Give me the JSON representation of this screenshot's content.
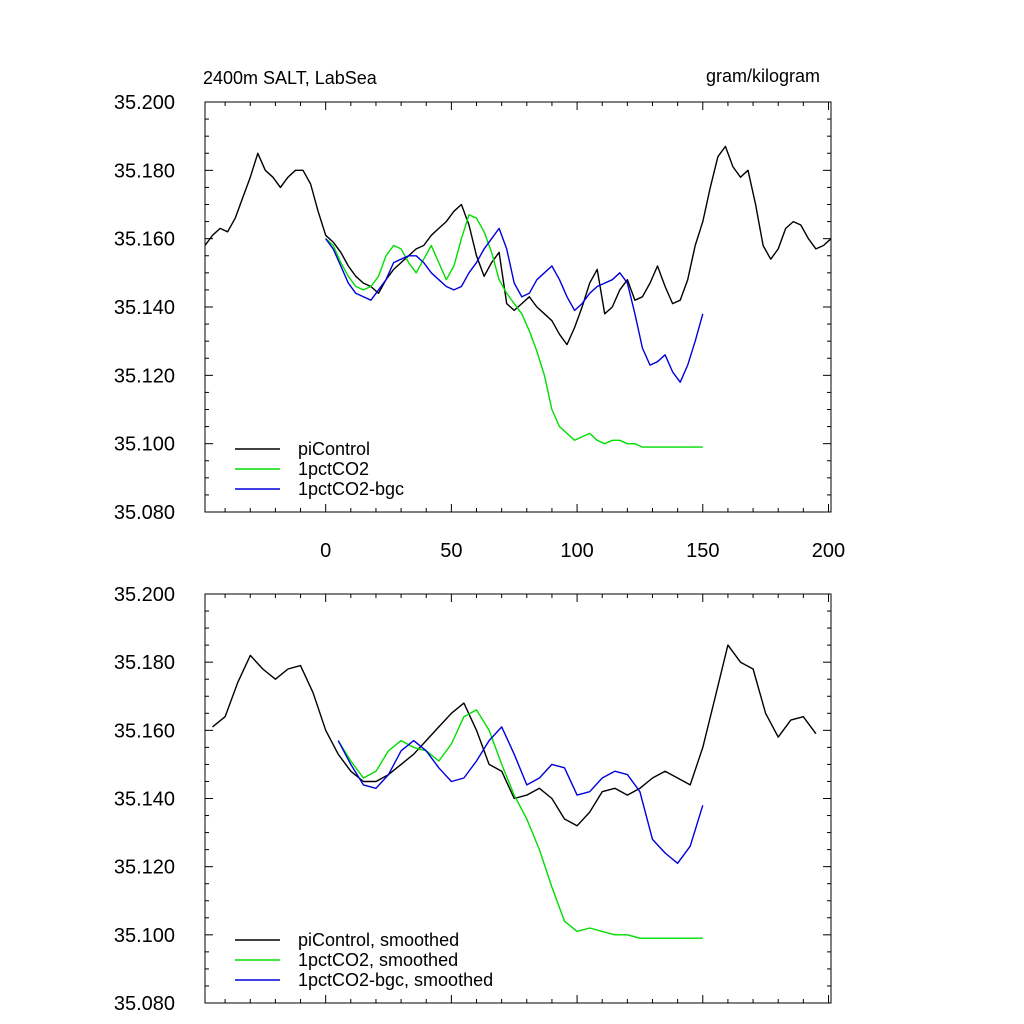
{
  "chart_data": [
    {
      "type": "line",
      "title": "2400m SALT, LabSea",
      "units": "gram/kilogram",
      "xlim": [
        -48,
        201
      ],
      "ylim": [
        35.08,
        35.2
      ],
      "xticks": [
        0,
        50,
        100,
        150,
        200
      ],
      "xtick_labels": [
        "0",
        "50",
        "100",
        "150",
        "200"
      ],
      "yticks": [
        35.08,
        35.1,
        35.12,
        35.14,
        35.16,
        35.18,
        35.2
      ],
      "ytick_labels": [
        "35.080",
        "35.100",
        "35.120",
        "35.140",
        "35.160",
        "35.180",
        "35.200"
      ],
      "legend_position": "bottom-left",
      "series": [
        {
          "name": "piControl",
          "color": "#000000",
          "x": [
            -48,
            -45,
            -42,
            -39,
            -36,
            -33,
            -30,
            -27,
            -24,
            -21,
            -18,
            -15,
            -12,
            -9,
            -6,
            -3,
            0,
            3,
            6,
            9,
            12,
            15,
            18,
            21,
            24,
            27,
            30,
            33,
            36,
            39,
            42,
            45,
            48,
            51,
            54,
            57,
            60,
            63,
            66,
            69,
            72,
            75,
            78,
            81,
            84,
            87,
            90,
            93,
            96,
            99,
            102,
            105,
            108,
            111,
            114,
            117,
            120,
            123,
            126,
            129,
            132,
            135,
            138,
            141,
            144,
            147,
            150,
            153,
            156,
            159,
            162,
            165,
            168,
            171,
            174,
            177,
            180,
            183,
            186,
            189,
            192,
            195,
            198,
            201
          ],
          "values": [
            35.158,
            35.161,
            35.163,
            35.162,
            35.166,
            35.172,
            35.178,
            35.185,
            35.18,
            35.178,
            35.175,
            35.178,
            35.18,
            35.18,
            35.176,
            35.168,
            35.161,
            35.159,
            35.156,
            35.152,
            35.149,
            35.147,
            35.146,
            35.144,
            35.148,
            35.151,
            35.153,
            35.155,
            35.157,
            35.158,
            35.161,
            35.163,
            35.165,
            35.168,
            35.17,
            35.164,
            35.155,
            35.149,
            35.153,
            35.156,
            35.141,
            35.139,
            35.141,
            35.143,
            35.14,
            35.138,
            35.136,
            35.132,
            35.129,
            35.134,
            35.14,
            35.147,
            35.151,
            35.138,
            35.14,
            35.145,
            35.148,
            35.142,
            35.143,
            35.147,
            35.152,
            35.146,
            35.141,
            35.142,
            35.148,
            35.158,
            35.165,
            35.175,
            35.184,
            35.187,
            35.181,
            35.178,
            35.18,
            35.17,
            35.158,
            35.154,
            35.157,
            35.163,
            35.165,
            35.164,
            35.16,
            35.157,
            35.158,
            35.16
          ]
        },
        {
          "name": "1pctCO2",
          "color": "#00dd00",
          "x": [
            0,
            3,
            6,
            9,
            12,
            15,
            18,
            21,
            24,
            27,
            30,
            33,
            36,
            39,
            42,
            45,
            48,
            51,
            54,
            57,
            60,
            63,
            66,
            69,
            72,
            75,
            78,
            81,
            84,
            87,
            90,
            93,
            96,
            99,
            102,
            105,
            108,
            111,
            114,
            117,
            120,
            123,
            126,
            129,
            132,
            135,
            138,
            141,
            144,
            147,
            150
          ],
          "values": [
            35.16,
            35.158,
            35.153,
            35.149,
            35.146,
            35.145,
            35.146,
            35.149,
            35.155,
            35.158,
            35.157,
            35.153,
            35.15,
            35.154,
            35.158,
            35.153,
            35.148,
            35.152,
            35.16,
            35.167,
            35.166,
            35.162,
            35.156,
            35.148,
            35.144,
            35.141,
            35.138,
            35.133,
            35.127,
            35.12,
            35.11,
            35.105,
            35.103,
            35.101,
            35.102,
            35.103,
            35.101,
            35.1,
            35.101,
            35.101,
            35.1,
            35.1,
            35.099,
            35.099,
            35.099,
            35.099,
            35.099,
            35.099,
            35.099,
            35.099,
            35.099
          ]
        },
        {
          "name": "1pctCO2-bgc",
          "color": "#0000dd",
          "x": [
            0,
            3,
            6,
            9,
            12,
            15,
            18,
            21,
            24,
            27,
            30,
            33,
            36,
            39,
            42,
            45,
            48,
            51,
            54,
            57,
            60,
            63,
            66,
            69,
            72,
            75,
            78,
            81,
            84,
            87,
            90,
            93,
            96,
            99,
            102,
            105,
            108,
            111,
            114,
            117,
            120,
            123,
            126,
            129,
            132,
            135,
            138,
            141,
            144,
            147,
            150
          ],
          "values": [
            35.16,
            35.157,
            35.152,
            35.147,
            35.144,
            35.143,
            35.142,
            35.145,
            35.148,
            35.153,
            35.154,
            35.155,
            35.155,
            35.153,
            35.15,
            35.148,
            35.146,
            35.145,
            35.146,
            35.15,
            35.153,
            35.157,
            35.16,
            35.163,
            35.157,
            35.147,
            35.143,
            35.144,
            35.148,
            35.15,
            35.152,
            35.148,
            35.143,
            35.139,
            35.141,
            35.144,
            35.146,
            35.147,
            35.148,
            35.15,
            35.147,
            35.138,
            35.128,
            35.123,
            35.124,
            35.126,
            35.121,
            35.118,
            35.123,
            35.13,
            35.138
          ]
        }
      ]
    },
    {
      "type": "line",
      "xlim": [
        -48,
        201
      ],
      "ylim": [
        35.08,
        35.2
      ],
      "xticks": [
        0,
        50,
        100,
        150,
        200
      ],
      "yticks": [
        35.08,
        35.1,
        35.12,
        35.14,
        35.16,
        35.18,
        35.2
      ],
      "ytick_labels": [
        "35.080",
        "35.100",
        "35.120",
        "35.140",
        "35.160",
        "35.180",
        "35.200"
      ],
      "legend_position": "bottom-left",
      "series": [
        {
          "name": "piControl, smoothed",
          "color": "#000000",
          "x": [
            -45,
            -40,
            -35,
            -30,
            -25,
            -20,
            -15,
            -10,
            -5,
            0,
            5,
            10,
            15,
            20,
            25,
            30,
            35,
            40,
            45,
            50,
            55,
            60,
            65,
            70,
            75,
            80,
            85,
            90,
            95,
            100,
            105,
            110,
            115,
            120,
            125,
            130,
            135,
            140,
            145,
            150,
            155,
            160,
            165,
            170,
            175,
            180,
            185,
            190,
            195
          ],
          "values": [
            35.161,
            35.164,
            35.174,
            35.182,
            35.178,
            35.175,
            35.178,
            35.179,
            35.171,
            35.16,
            35.153,
            35.148,
            35.145,
            35.145,
            35.147,
            35.15,
            35.153,
            35.157,
            35.161,
            35.165,
            35.168,
            35.16,
            35.15,
            35.148,
            35.14,
            35.141,
            35.143,
            35.14,
            35.134,
            35.132,
            35.136,
            35.142,
            35.143,
            35.141,
            35.143,
            35.146,
            35.148,
            35.146,
            35.144,
            35.155,
            35.17,
            35.185,
            35.18,
            35.178,
            35.165,
            35.158,
            35.163,
            35.164,
            35.159
          ]
        },
        {
          "name": "1pctCO2, smoothed",
          "color": "#00dd00",
          "x": [
            5,
            10,
            15,
            20,
            25,
            30,
            35,
            40,
            45,
            50,
            55,
            60,
            65,
            70,
            75,
            80,
            85,
            90,
            95,
            100,
            105,
            110,
            115,
            120,
            125,
            130,
            135,
            140,
            145,
            150
          ],
          "values": [
            35.157,
            35.151,
            35.146,
            35.148,
            35.154,
            35.157,
            35.155,
            35.154,
            35.151,
            35.156,
            35.164,
            35.166,
            35.16,
            35.15,
            35.141,
            35.134,
            35.125,
            35.114,
            35.104,
            35.101,
            35.102,
            35.101,
            35.1,
            35.1,
            35.099,
            35.099,
            35.099,
            35.099,
            35.099,
            35.099
          ]
        },
        {
          "name": "1pctCO2-bgc, smoothed",
          "color": "#0000dd",
          "x": [
            5,
            10,
            15,
            20,
            25,
            30,
            35,
            40,
            45,
            50,
            55,
            60,
            65,
            70,
            75,
            80,
            85,
            90,
            95,
            100,
            105,
            110,
            115,
            120,
            125,
            130,
            135,
            140,
            145,
            150
          ],
          "values": [
            35.157,
            35.15,
            35.144,
            35.143,
            35.147,
            35.154,
            35.157,
            35.154,
            35.149,
            35.145,
            35.146,
            35.151,
            35.157,
            35.161,
            35.153,
            35.144,
            35.146,
            35.15,
            35.149,
            35.141,
            35.142,
            35.146,
            35.148,
            35.147,
            35.142,
            35.128,
            35.124,
            35.121,
            35.126,
            35.138
          ]
        }
      ]
    }
  ]
}
